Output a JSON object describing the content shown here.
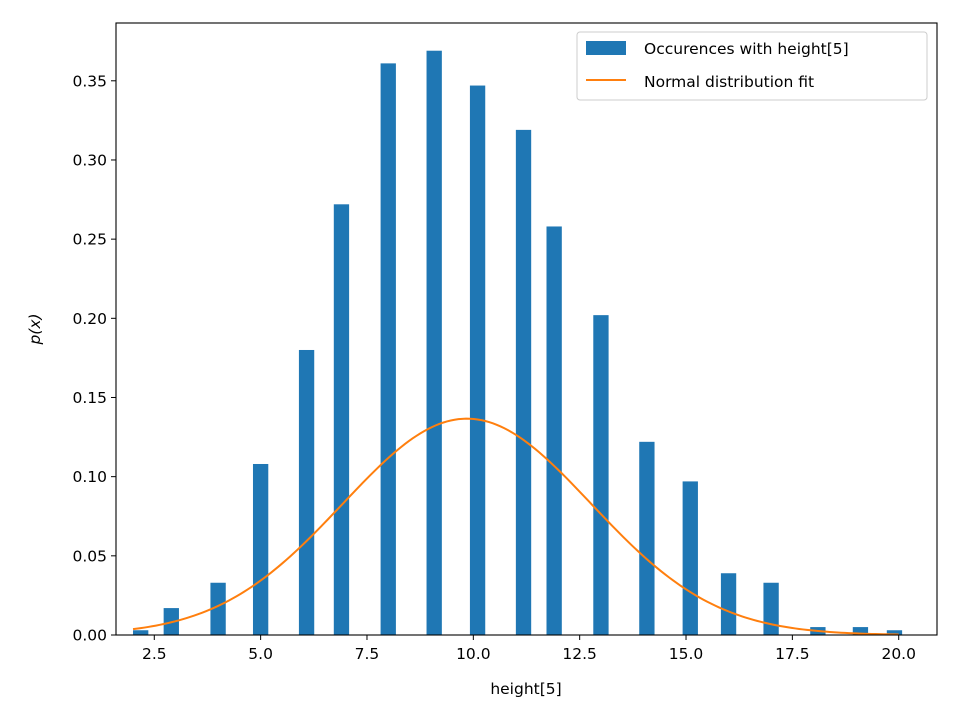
{
  "chart_data": {
    "type": "bar",
    "title": "",
    "xlabel": "height[5]",
    "ylabel": "p(x)",
    "xlim": [
      1.6,
      20.9
    ],
    "ylim": [
      0,
      0.3865
    ],
    "xticks": [
      2.5,
      5.0,
      7.5,
      10.0,
      12.5,
      15.0,
      17.5,
      20.0
    ],
    "xtick_labels": [
      "2.5",
      "5.0",
      "7.5",
      "10.0",
      "12.5",
      "15.0",
      "17.5",
      "20.0"
    ],
    "yticks": [
      0.0,
      0.05,
      0.1,
      0.15,
      0.2,
      0.25,
      0.3,
      0.35
    ],
    "ytick_labels": [
      "0.00",
      "0.05",
      "0.10",
      "0.15",
      "0.20",
      "0.25",
      "0.30",
      "0.35"
    ],
    "grid": false,
    "legend_position": "top-right",
    "bar_width": 0.36,
    "series": [
      {
        "name": "Occurences with height[5]",
        "kind": "bar",
        "color": "#1f77b4",
        "x": [
          2.18,
          2.9,
          4.0,
          5.0,
          6.08,
          6.9,
          8.0,
          9.08,
          10.1,
          11.18,
          11.9,
          13.0,
          14.08,
          15.1,
          16.0,
          17.0,
          18.1,
          19.1,
          19.9
        ],
        "values": [
          0.003,
          0.017,
          0.033,
          0.108,
          0.18,
          0.272,
          0.361,
          0.369,
          0.347,
          0.319,
          0.258,
          0.202,
          0.122,
          0.097,
          0.039,
          0.033,
          0.005,
          0.005,
          0.003
        ]
      },
      {
        "name": "Normal distribution fit",
        "kind": "line",
        "color": "#ff7f0e",
        "mean": 9.85,
        "std": 2.92,
        "x_range": [
          2.0,
          20.0
        ]
      }
    ]
  }
}
